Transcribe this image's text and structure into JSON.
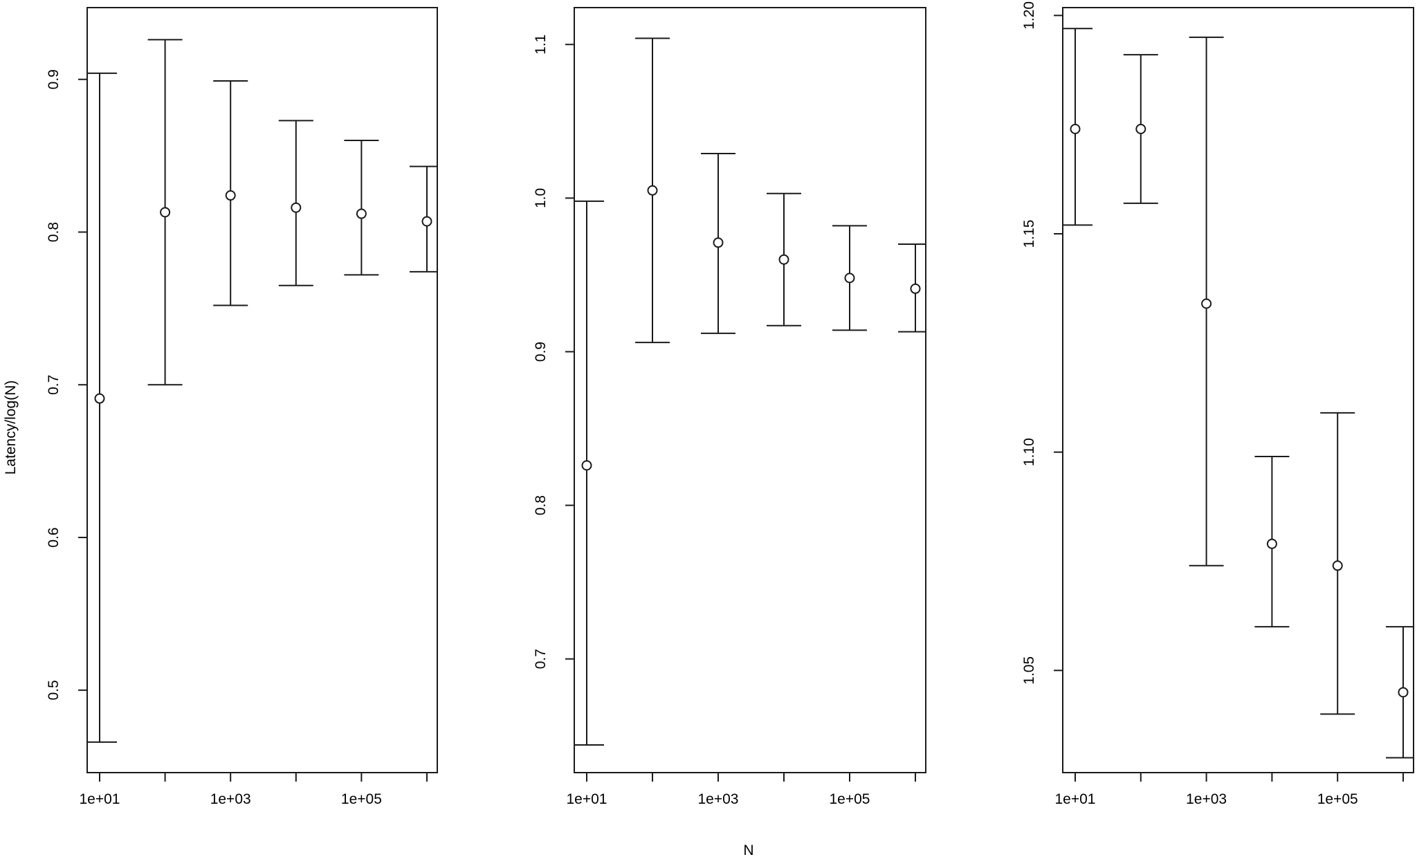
{
  "figure": {
    "ylabel": "Latency/log(N)",
    "xlabel": "N"
  },
  "chart_data": [
    {
      "type": "scatter",
      "title": "",
      "xlabel": "",
      "ylabel": "Latency/log(N)",
      "x_scale": "log",
      "x_values": [
        10,
        100,
        1000,
        10000,
        100000,
        1000000
      ],
      "x_ticks": [
        10,
        100,
        1000,
        10000,
        100000,
        1000000
      ],
      "x_tick_labels": [
        "1e+01",
        "",
        "1e+03",
        "",
        "1e+05",
        ""
      ],
      "y_ticks": [
        0.5,
        0.6,
        0.7,
        0.8,
        0.9
      ],
      "y_tick_labels": [
        "0.5",
        "0.6",
        "0.7",
        "0.8",
        "0.9"
      ],
      "ylim": [
        0.446,
        0.947
      ],
      "grid": false,
      "series": [
        {
          "mean": [
            0.691,
            0.813,
            0.824,
            0.816,
            0.812,
            0.807
          ],
          "lower": [
            0.466,
            0.7,
            0.752,
            0.765,
            0.772,
            0.774
          ],
          "upper": [
            0.904,
            0.926,
            0.899,
            0.873,
            0.86,
            0.843
          ]
        }
      ]
    },
    {
      "type": "scatter",
      "title": "",
      "xlabel": "N",
      "ylabel": "",
      "x_scale": "log",
      "x_values": [
        10,
        100,
        1000,
        10000,
        100000,
        1000000
      ],
      "x_ticks": [
        10,
        100,
        1000,
        10000,
        100000,
        1000000
      ],
      "x_tick_labels": [
        "1e+01",
        "",
        "1e+03",
        "",
        "1e+05",
        ""
      ],
      "y_ticks": [
        0.7,
        0.8,
        0.9,
        1.0,
        1.1
      ],
      "y_tick_labels": [
        "0.7",
        "0.8",
        "0.9",
        "1.0",
        "1.1"
      ],
      "ylim": [
        0.626,
        1.124
      ],
      "grid": false,
      "series": [
        {
          "mean": [
            0.826,
            1.005,
            0.971,
            0.96,
            0.948,
            0.941
          ],
          "lower": [
            0.644,
            0.906,
            0.912,
            0.917,
            0.914,
            0.913
          ],
          "upper": [
            0.998,
            1.104,
            1.029,
            1.003,
            0.982,
            0.97
          ]
        }
      ]
    },
    {
      "type": "scatter",
      "title": "",
      "xlabel": "",
      "ylabel": "",
      "x_scale": "log",
      "x_values": [
        10,
        100,
        1000,
        10000,
        100000,
        1000000
      ],
      "x_ticks": [
        10,
        100,
        1000,
        10000,
        100000,
        1000000
      ],
      "x_tick_labels": [
        "1e+01",
        "",
        "1e+03",
        "",
        "1e+05",
        ""
      ],
      "y_ticks": [
        1.05,
        1.1,
        1.15,
        1.2
      ],
      "y_tick_labels": [
        "1.05",
        "1.10",
        "1.15",
        "1.20"
      ],
      "ylim": [
        1.0266,
        1.2018
      ],
      "grid": false,
      "series": [
        {
          "mean": [
            1.174,
            1.174,
            1.134,
            1.079,
            1.074,
            1.045
          ],
          "lower": [
            1.152,
            1.157,
            1.074,
            1.06,
            1.04,
            1.03
          ],
          "upper": [
            1.197,
            1.191,
            1.195,
            1.099,
            1.109,
            1.06
          ]
        }
      ]
    }
  ]
}
